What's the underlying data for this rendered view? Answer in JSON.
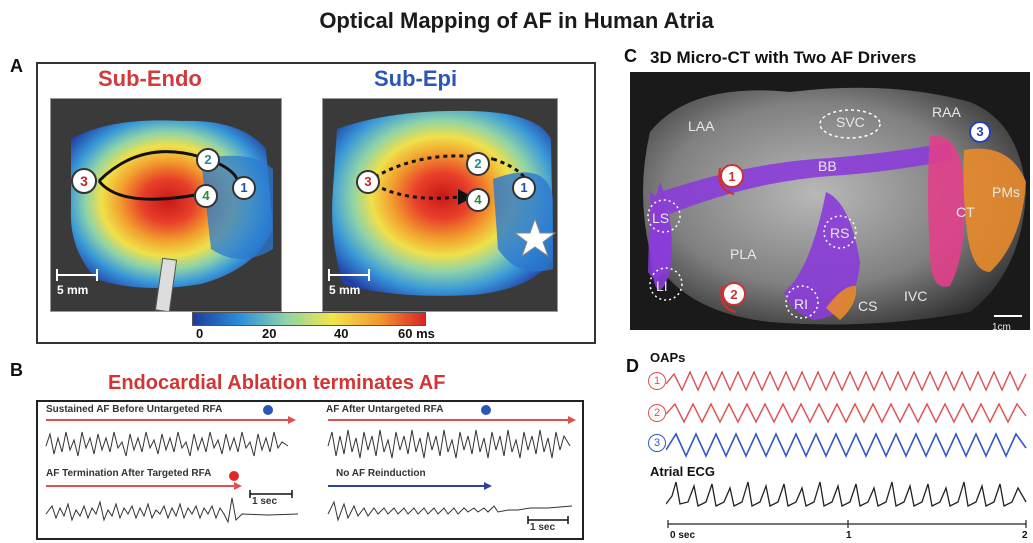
{
  "title": "Optical Mapping of AF in Human Atria",
  "panelA": {
    "letter": "A",
    "left_title": "Sub-Endo",
    "right_title": "Sub-Epi",
    "scale_left": "5 mm",
    "scale_right": "5 mm",
    "markers": [
      "1",
      "2",
      "3",
      "4"
    ],
    "colorbar": {
      "ticks": [
        "0",
        "20",
        "40",
        "60 ms"
      ],
      "colors": [
        "#1f3a9e",
        "#2a8fd8",
        "#8fd3a8",
        "#f2e54a",
        "#f29a2e",
        "#d8242a"
      ]
    },
    "title_colors": {
      "endo": "#d13b3b",
      "epi": "#2b56b8"
    }
  },
  "panelB": {
    "letter": "B",
    "title": "Endocardial Ablation terminates AF",
    "labels": {
      "tl": "Sustained AF Before Untargeted RFA",
      "tr": "AF After Untargeted RFA",
      "bl": "AF Termination After Targeted RFA",
      "br": "No AF Reinduction",
      "scale_bl": "1 sec",
      "scale_br": "1 sec"
    }
  },
  "panelC": {
    "letter": "C",
    "title": "3D Micro-CT with Two AF Drivers",
    "labels": {
      "laa": "LAA",
      "svc": "SVC",
      "raa": "RAA",
      "bb": "BB",
      "pms": "PMs",
      "ls": "LS",
      "rs": "RS",
      "pla": "PLA",
      "ct": "CT",
      "li": "LI",
      "ri": "RI",
      "cs": "CS",
      "ivc": "IVC",
      "scale": "1cm"
    },
    "drivers": [
      "1",
      "2",
      "3"
    ]
  },
  "panelD": {
    "letter": "D",
    "oaps_label": "OAPs",
    "traces": [
      "1",
      "2",
      "3"
    ],
    "ecg_label": "Atrial ECG",
    "axis": [
      "0 sec",
      "1",
      "2"
    ],
    "colors": {
      "oap1": "#e05050",
      "oap2": "#e05050",
      "oap3": "#3355cc",
      "ecg": "#222222"
    }
  }
}
